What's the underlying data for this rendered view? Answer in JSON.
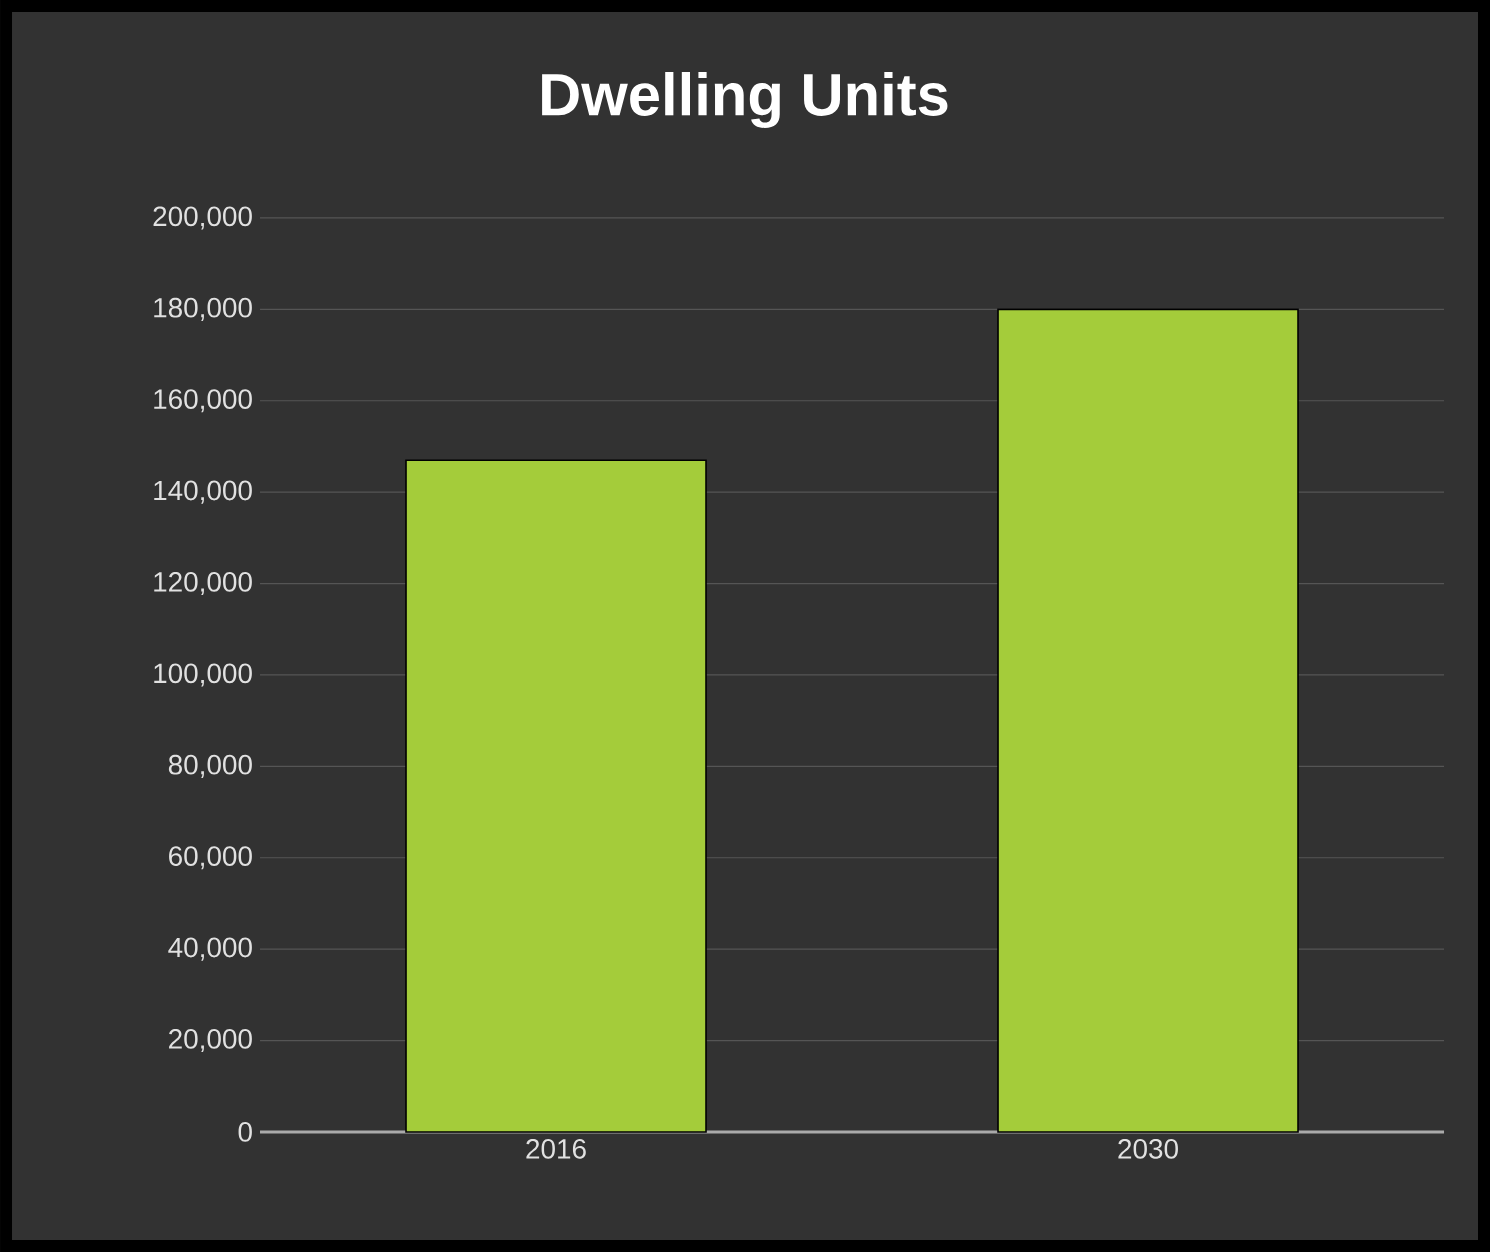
{
  "chart_data": {
    "type": "bar",
    "title": "Dwelling Units",
    "categories": [
      "2016",
      "2030"
    ],
    "values": [
      147000,
      180000
    ],
    "color": "#a4cc3a",
    "ylim": [
      0,
      200000
    ],
    "yticks": [
      {
        "value": 0,
        "label": "0"
      },
      {
        "value": 20000,
        "label": "20,000"
      },
      {
        "value": 40000,
        "label": "40,000"
      },
      {
        "value": 60000,
        "label": "60,000"
      },
      {
        "value": 80000,
        "label": "80,000"
      },
      {
        "value": 100000,
        "label": "100,000"
      },
      {
        "value": 120000,
        "label": "120,000"
      },
      {
        "value": 140000,
        "label": "140,000"
      },
      {
        "value": 160000,
        "label": "160,000"
      },
      {
        "value": 180000,
        "label": "180,000"
      },
      {
        "value": 200000,
        "label": "200,000"
      }
    ],
    "grid": "y"
  }
}
